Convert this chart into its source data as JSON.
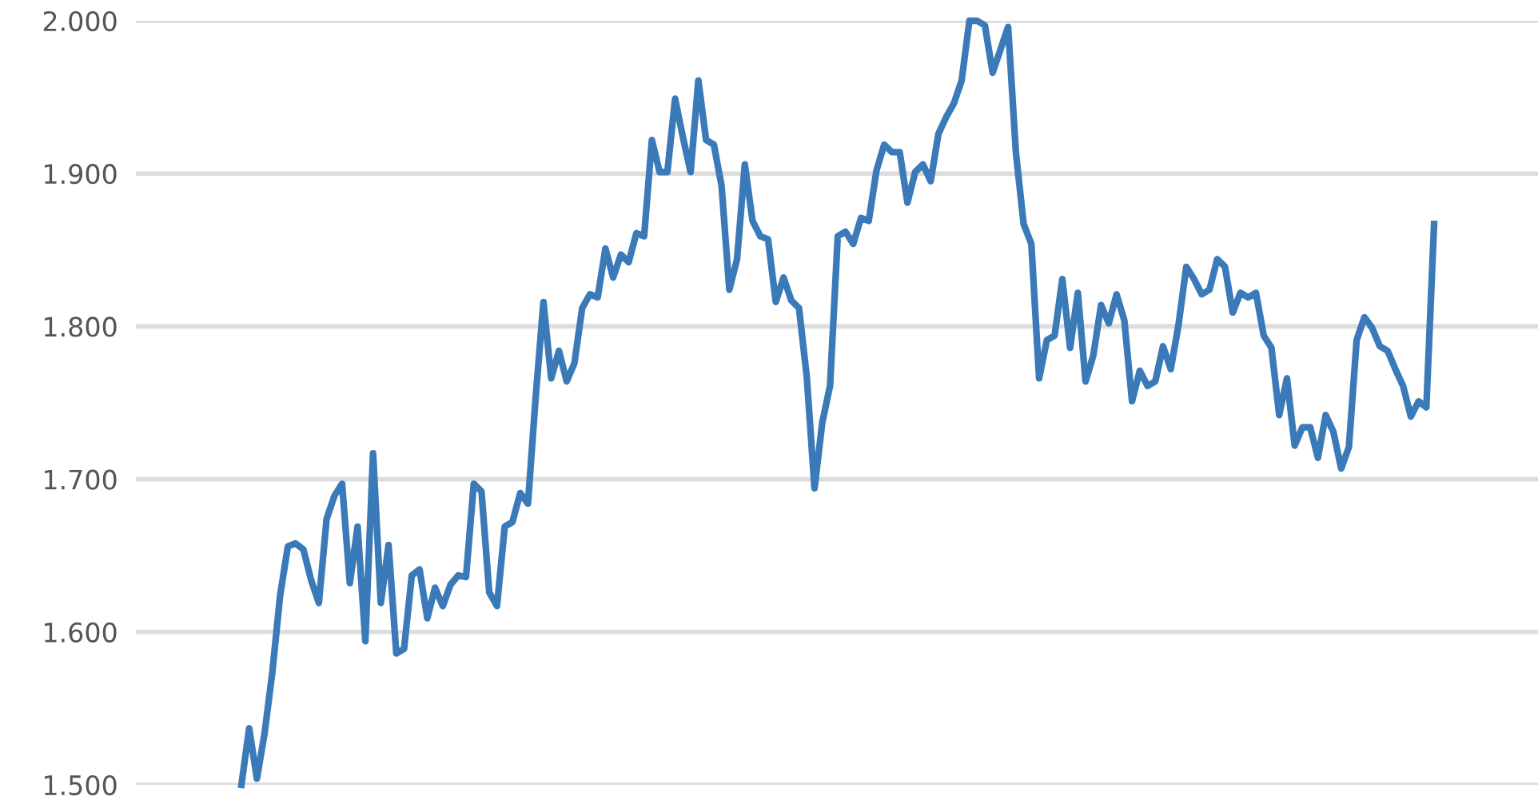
{
  "chart_data": {
    "type": "line",
    "categories": [
      null,
      null,
      null,
      null,
      null,
      null,
      null,
      null,
      null,
      null,
      null,
      null,
      null,
      null,
      null,
      null,
      null,
      null,
      null,
      null,
      null,
      null,
      null,
      null,
      null,
      null,
      null,
      null,
      null,
      null,
      null,
      null,
      null,
      null,
      null,
      null,
      null,
      null,
      null,
      null,
      null,
      null,
      null,
      null,
      null,
      null,
      null,
      null,
      null,
      null,
      null,
      null,
      null,
      null,
      null,
      null,
      null,
      null,
      null,
      null,
      null,
      null,
      null,
      null,
      null,
      null,
      null,
      null,
      null,
      null,
      null,
      null,
      null,
      null,
      null,
      null,
      null,
      null,
      null,
      null,
      null,
      null,
      null,
      null,
      null,
      null,
      null,
      null,
      null,
      null,
      null,
      null,
      null,
      null,
      null,
      null,
      null,
      null,
      null,
      null,
      null,
      null,
      null,
      null,
      null,
      null,
      null,
      null,
      null,
      null,
      null,
      null,
      null,
      null,
      null,
      null,
      null,
      null,
      null,
      null,
      null,
      null,
      null,
      null,
      null,
      null,
      null,
      null,
      null,
      null,
      null,
      null,
      null,
      null,
      null,
      null,
      null,
      null,
      null,
      null,
      null,
      null,
      null,
      null,
      null,
      null,
      null,
      null,
      null,
      null,
      null,
      null,
      null,
      null,
      null
    ],
    "series": [
      {
        "color": "#3a7ab8",
        "values": [
          1.5,
          1.537,
          1.504,
          1.534,
          1.574,
          1.624,
          1.656,
          1.658,
          1.654,
          1.634,
          1.619,
          1.674,
          1.689,
          1.697,
          1.632,
          1.669,
          1.594,
          1.717,
          1.619,
          1.657,
          1.586,
          1.589,
          1.637,
          1.641,
          1.609,
          1.629,
          1.617,
          1.631,
          1.637,
          1.636,
          1.697,
          1.692,
          1.626,
          1.617,
          1.669,
          1.672,
          1.691,
          1.684,
          1.754,
          1.816,
          1.766,
          1.784,
          1.764,
          1.776,
          1.812,
          1.821,
          1.819,
          1.851,
          1.832,
          1.847,
          1.842,
          1.861,
          1.859,
          1.922,
          1.901,
          1.901,
          1.949,
          1.924,
          1.901,
          1.961,
          1.922,
          1.919,
          1.892,
          1.824,
          1.844,
          1.906,
          1.869,
          1.859,
          1.857,
          1.816,
          1.832,
          1.817,
          1.812,
          1.767,
          1.694,
          1.737,
          1.761,
          1.859,
          1.862,
          1.854,
          1.871,
          1.869,
          1.902,
          1.919,
          1.914,
          1.914,
          1.881,
          1.901,
          1.906,
          1.895,
          1.926,
          1.937,
          1.946,
          1.961,
          2.0,
          2.0,
          1.997,
          1.966,
          1.981,
          1.996,
          1.914,
          1.867,
          1.854,
          1.766,
          1.791,
          1.794,
          1.831,
          1.786,
          1.822,
          1.764,
          1.781,
          1.814,
          1.802,
          1.821,
          1.804,
          1.751,
          1.771,
          1.761,
          1.764,
          1.787,
          1.772,
          1.801,
          1.839,
          1.831,
          1.821,
          1.824,
          1.844,
          1.839,
          1.809,
          1.822,
          1.819,
          1.822,
          1.794,
          1.786,
          1.742,
          1.766,
          1.722,
          1.734,
          1.734,
          1.714,
          1.742,
          1.731,
          1.707,
          1.721,
          1.791,
          1.806,
          1.799,
          1.787,
          1.784,
          1.772,
          1.761,
          1.741,
          1.751,
          1.747,
          1.867
        ]
      }
    ],
    "ylim": [
      1.5,
      2.0
    ],
    "yticks": [
      {
        "value": 1.5,
        "label": "1.500"
      },
      {
        "value": 1.6,
        "label": "1.600"
      },
      {
        "value": 1.7,
        "label": "1.700"
      },
      {
        "value": 1.8,
        "label": "1.800"
      },
      {
        "value": 1.9,
        "label": "1.900"
      },
      {
        "value": 2.0,
        "label": "2.000"
      }
    ],
    "grid": "y",
    "tick_labels": "y",
    "marker": "none",
    "line_style": "solid"
  }
}
